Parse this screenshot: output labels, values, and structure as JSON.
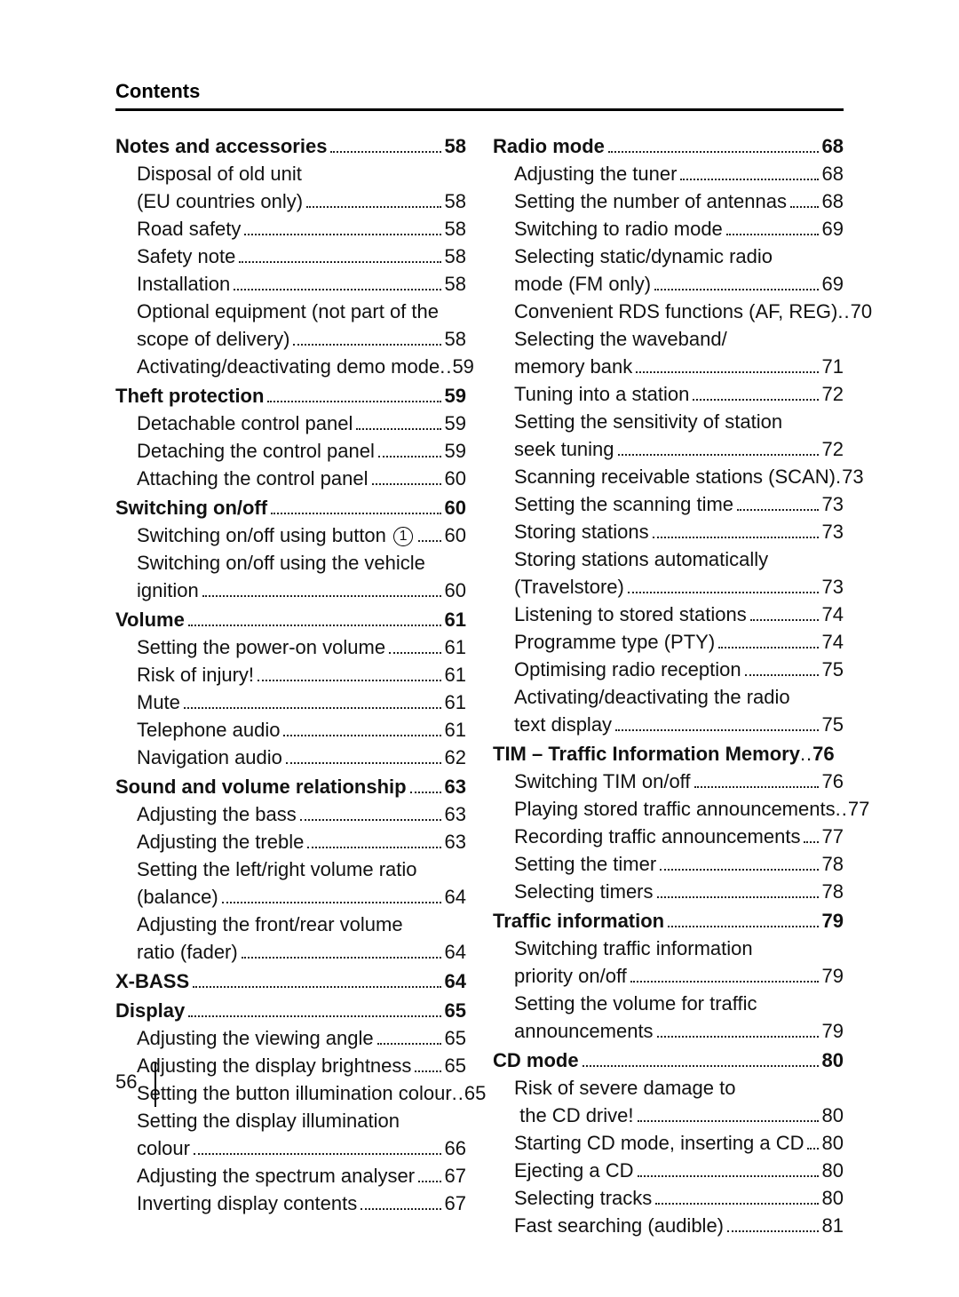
{
  "header": "Contents",
  "page_number": "56",
  "columns": [
    {
      "sections": [
        {
          "heading": {
            "label": "Notes and accessories",
            "page": "58"
          },
          "items": [
            {
              "label": "Disposal of old unit",
              "page": null,
              "continuation": "(EU countries only)",
              "cpage": "58"
            },
            {
              "label": "Road safety",
              "page": "58"
            },
            {
              "label": "Safety note",
              "page": "58"
            },
            {
              "label": "Installation",
              "page": "58"
            },
            {
              "label": "Optional equipment (not part of the",
              "page": null,
              "continuation": "scope of delivery)",
              "cpage": "58"
            },
            {
              "label": "Activating/deactivating demo mode",
              "page": "59",
              "tight": true
            }
          ]
        },
        {
          "heading": {
            "label": "Theft protection",
            "page": "59"
          },
          "items": [
            {
              "label": "Detachable control panel",
              "page": "59"
            },
            {
              "label": "Detaching the control panel",
              "page": "59"
            },
            {
              "label": "Attaching the control panel",
              "page": "60"
            }
          ]
        },
        {
          "heading": {
            "label": "Switching on/off",
            "page": "60"
          },
          "items": [
            {
              "label_html": "Switching on/off using button <span class=\"circled\">1</span>",
              "page": "60"
            },
            {
              "label": "Switching on/off using the vehicle",
              "page": null,
              "continuation": "ignition",
              "cpage": "60"
            }
          ]
        },
        {
          "heading": {
            "label": "Volume",
            "page": "61"
          },
          "items": [
            {
              "label": "Setting the power-on volume",
              "page": "61"
            },
            {
              "label": "Risk of injury!",
              "page": "61"
            },
            {
              "label": "Mute",
              "page": "61"
            },
            {
              "label": "Telephone audio",
              "page": "61"
            },
            {
              "label": "Navigation audio",
              "page": "62"
            }
          ]
        },
        {
          "heading": {
            "label": "Sound and volume relationship",
            "page": "63"
          },
          "items": [
            {
              "label": "Adjusting the bass",
              "page": "63"
            },
            {
              "label": "Adjusting the treble",
              "page": "63"
            },
            {
              "label": "Setting the left/right volume ratio",
              "page": null,
              "continuation": "(balance)",
              "cpage": "64"
            },
            {
              "label": "Adjusting the front/rear volume",
              "page": null,
              "continuation": "ratio (fader)",
              "cpage": "64"
            }
          ]
        },
        {
          "heading": {
            "label": "X-BASS",
            "page": "64"
          },
          "items": []
        },
        {
          "heading": {
            "label": "Display",
            "page": "65"
          },
          "items": [
            {
              "label": "Adjusting the viewing angle",
              "page": "65"
            },
            {
              "label": "Adjusting the display brightness",
              "page": "65"
            },
            {
              "label": "Setting the button illumination colour",
              "page": "65",
              "tight": true
            },
            {
              "label": "Setting the display illumination",
              "page": null,
              "continuation": "colour",
              "cpage": "66"
            },
            {
              "label": "Adjusting the spectrum analyser",
              "page": "67"
            },
            {
              "label": "Inverting display contents",
              "page": "67"
            }
          ]
        }
      ]
    },
    {
      "sections": [
        {
          "heading": {
            "label": "Radio mode",
            "page": "68"
          },
          "items": [
            {
              "label": "Adjusting the tuner",
              "page": "68"
            },
            {
              "label": "Setting the number of antennas",
              "page": "68"
            },
            {
              "label": "Switching to radio mode",
              "page": "69"
            },
            {
              "label": "Selecting static/dynamic radio",
              "page": null,
              "continuation": "mode (FM only)",
              "cpage": "69"
            },
            {
              "label": "Convenient RDS functions (AF, REG)",
              "page": "70",
              "tight": true
            },
            {
              "label": "Selecting the waveband/",
              "page": null,
              "continuation": "memory bank",
              "cpage": "71"
            },
            {
              "label": "Tuning into a station",
              "page": "72"
            },
            {
              "label": "Setting the sensitivity of station",
              "page": null,
              "continuation": "seek tuning",
              "cpage": "72"
            },
            {
              "label": "Scanning receivable stations (SCAN)",
              "page": "73",
              "tight": true,
              "sep": "."
            },
            {
              "label": "Setting the scanning time",
              "page": "73"
            },
            {
              "label": "Storing stations",
              "page": "73"
            },
            {
              "label": "Storing stations automatically",
              "page": null,
              "continuation": "(Travelstore)",
              "cpage": "73"
            },
            {
              "label": "Listening to stored stations",
              "page": "74"
            },
            {
              "label": "Programme type (PTY)",
              "page": "74"
            },
            {
              "label": "Optimising radio reception",
              "page": "75"
            },
            {
              "label": "Activating/deactivating the radio",
              "page": null,
              "continuation": "text display",
              "cpage": "75"
            }
          ]
        },
        {
          "heading": {
            "label": "TIM – Traffic Information Memory",
            "page": "76",
            "tight": true
          },
          "items": [
            {
              "label": "Switching TIM on/off",
              "page": "76"
            },
            {
              "label": "Playing stored traffic announcements",
              "page": "77",
              "tight": true
            },
            {
              "label": "Recording traffic announcements",
              "page": "77"
            },
            {
              "label": "Setting the timer",
              "page": "78"
            },
            {
              "label": "Selecting timers",
              "page": "78"
            }
          ]
        },
        {
          "heading": {
            "label": "Traffic information",
            "page": "79"
          },
          "items": [
            {
              "label": "Switching traffic information",
              "page": null,
              "continuation": "priority on/off",
              "cpage": "79"
            },
            {
              "label": "Setting the volume for traffic",
              "page": null,
              "continuation": "announcements",
              "cpage": "79"
            }
          ]
        },
        {
          "heading": {
            "label": "CD mode",
            "page": "80"
          },
          "items": [
            {
              "label": "Risk of severe damage to",
              "page": null,
              "continuation": " the CD drive!",
              "cpage": "80"
            },
            {
              "label": "Starting CD mode, inserting a CD",
              "page": "80"
            },
            {
              "label": "Ejecting a CD",
              "page": "80"
            },
            {
              "label": "Selecting tracks",
              "page": "80"
            },
            {
              "label": "Fast searching (audible)",
              "page": "81"
            }
          ]
        }
      ]
    }
  ]
}
